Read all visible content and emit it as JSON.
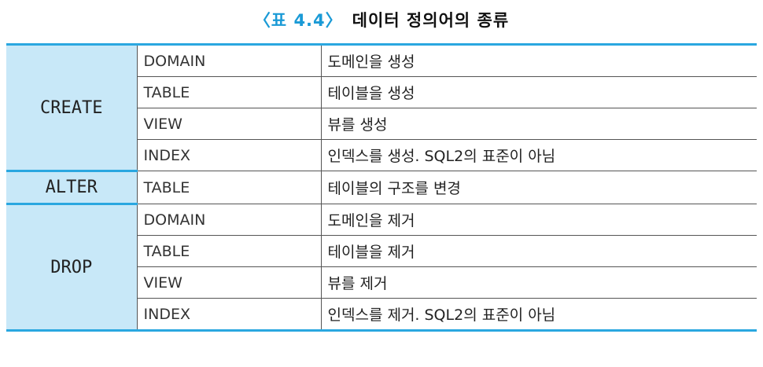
{
  "caption": {
    "label": "〈표 4.4〉",
    "title": "데이터 정의어의 종류"
  },
  "groups": [
    {
      "command": "CREATE",
      "rows": [
        {
          "object": "DOMAIN",
          "description": "도메인을 생성"
        },
        {
          "object": "TABLE",
          "description": "테이블을 생성"
        },
        {
          "object": "VIEW",
          "description": "뷰를 생성"
        },
        {
          "object": "INDEX",
          "description": "인덱스를 생성. SQL2의 표준이 아님"
        }
      ]
    },
    {
      "command": "ALTER",
      "rows": [
        {
          "object": "TABLE",
          "description": "테이블의 구조를 변경"
        }
      ]
    },
    {
      "command": "DROP",
      "rows": [
        {
          "object": "DOMAIN",
          "description": "도메인을 제거"
        },
        {
          "object": "TABLE",
          "description": "테이블을 제거"
        },
        {
          "object": "VIEW",
          "description": "뷰를 제거"
        },
        {
          "object": "INDEX",
          "description": "인덱스를 제거. SQL2의 표준이 아님"
        }
      ]
    }
  ],
  "colors": {
    "accent": "#2aa7e0",
    "command_bg": "#c8e8f8",
    "caption_label": "#1a9ad6"
  }
}
